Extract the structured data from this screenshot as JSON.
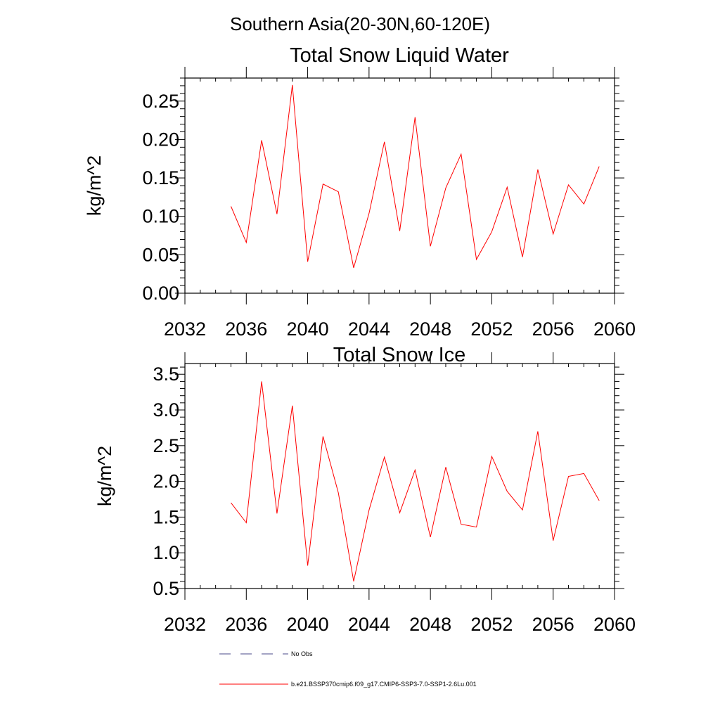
{
  "main_title": "Southern Asia(20-30N,60-120E)",
  "chart_data": [
    {
      "type": "line",
      "title": "Total Snow Liquid Water",
      "xlabel": "",
      "ylabel": "kg/m^2",
      "xlim": [
        2032,
        2060
      ],
      "ylim": [
        0.0,
        0.28
      ],
      "x_ticks": [
        2032,
        2036,
        2040,
        2044,
        2048,
        2052,
        2056,
        2060
      ],
      "x_tick_labels": [
        "2032",
        "2036",
        "2040",
        "2044",
        "2048",
        "2052",
        "2056",
        "2060"
      ],
      "y_ticks": [
        0.0,
        0.05,
        0.1,
        0.15,
        0.2,
        0.25
      ],
      "y_tick_labels": [
        "0.00",
        "0.05",
        "0.10",
        "0.15",
        "0.20",
        "0.25"
      ],
      "series": [
        {
          "name": "b.e21.BSSP370cmip6.f09_g17.CMIP6-SSP3-7.0-SSP1-2.6Lu.001",
          "color": "#ff0000",
          "x": [
            2035,
            2036,
            2037,
            2038,
            2039,
            2040,
            2041,
            2042,
            2043,
            2044,
            2045,
            2046,
            2047,
            2048,
            2049,
            2050,
            2051,
            2052,
            2053,
            2054,
            2055,
            2056,
            2057,
            2058,
            2059
          ],
          "y": [
            0.113,
            0.066,
            0.199,
            0.103,
            0.271,
            0.041,
            0.142,
            0.132,
            0.033,
            0.104,
            0.197,
            0.081,
            0.229,
            0.061,
            0.137,
            0.181,
            0.044,
            0.08,
            0.138,
            0.047,
            0.161,
            0.077,
            0.141,
            0.116,
            0.165
          ]
        }
      ]
    },
    {
      "type": "line",
      "title": "Total Snow Ice",
      "xlabel": "",
      "ylabel": "kg/m^2",
      "xlim": [
        2032,
        2060
      ],
      "ylim": [
        0.5,
        3.65
      ],
      "x_ticks": [
        2032,
        2036,
        2040,
        2044,
        2048,
        2052,
        2056,
        2060
      ],
      "x_tick_labels": [
        "2032",
        "2036",
        "2040",
        "2044",
        "2048",
        "2052",
        "2056",
        "2060"
      ],
      "y_ticks": [
        0.5,
        1.0,
        1.5,
        2.0,
        2.5,
        3.0,
        3.5
      ],
      "y_tick_labels": [
        "0.5",
        "1.0",
        "1.5",
        "2.0",
        "2.5",
        "3.0",
        "3.5"
      ],
      "series": [
        {
          "name": "b.e21.BSSP370cmip6.f09_g17.CMIP6-SSP3-7.0-SSP1-2.6Lu.001",
          "color": "#ff0000",
          "x": [
            2035,
            2036,
            2037,
            2038,
            2039,
            2040,
            2041,
            2042,
            2043,
            2044,
            2045,
            2046,
            2047,
            2048,
            2049,
            2050,
            2051,
            2052,
            2053,
            2054,
            2055,
            2056,
            2057,
            2058,
            2059
          ],
          "y": [
            1.7,
            1.42,
            3.4,
            1.55,
            3.06,
            0.82,
            2.63,
            1.84,
            0.6,
            1.6,
            2.34,
            1.56,
            2.16,
            1.22,
            2.2,
            1.4,
            1.36,
            2.35,
            1.86,
            1.6,
            2.7,
            1.17,
            2.07,
            2.11,
            1.73
          ]
        }
      ]
    }
  ],
  "legend": {
    "placement": "bottom",
    "items": [
      {
        "label": "No Obs",
        "color": "#4a4a8a",
        "style": "dashed"
      },
      {
        "label": "b.e21.BSSP370cmip6.f09_g17.CMIP6-SSP3-7.0-SSP1-2.6Lu.001",
        "color": "#ff0000",
        "style": "solid"
      }
    ]
  }
}
